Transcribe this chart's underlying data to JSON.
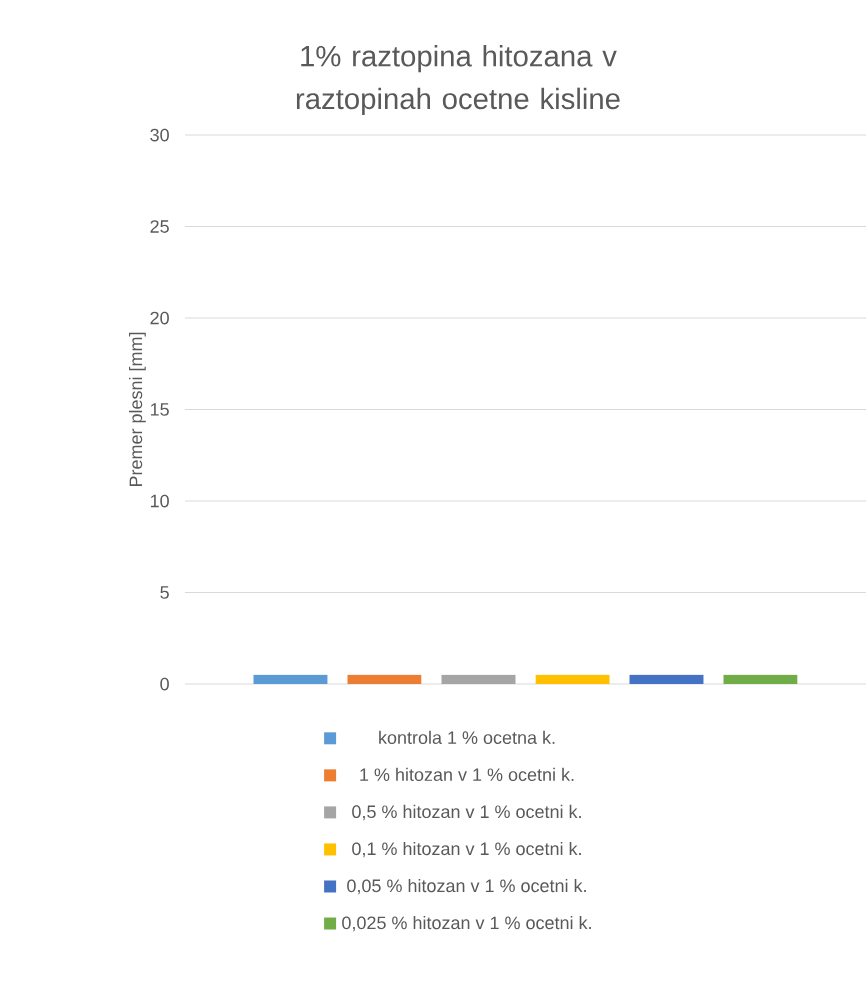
{
  "chart_data": {
    "type": "bar",
    "title": "1% raztopina hitozana v raztopinah ocetne kisline",
    "ylabel": "Premer plesni [mm]",
    "categories": [
      null
    ],
    "series": [
      {
        "name": "kontrola 1 % ocetna k.",
        "color": "#5b9bd5",
        "values": [
          0.5
        ]
      },
      {
        "name": "1 % hitozan v 1 % ocetni k.",
        "color": "#ed7d31",
        "values": [
          0.5
        ]
      },
      {
        "name": "0,5 % hitozan v 1 % ocetni k.",
        "color": "#a5a5a5",
        "values": [
          0.5
        ]
      },
      {
        "name": "0,1 % hitozan v 1 % ocetni k.",
        "color": "#ffc000",
        "values": [
          0.5
        ]
      },
      {
        "name": "0,05 % hitozan v 1 % ocetni k.",
        "color": "#4472c4",
        "values": [
          0.5
        ]
      },
      {
        "name": "0,025 % hitozan v 1 % ocetni k.",
        "color": "#70ad47",
        "values": [
          0.5
        ]
      }
    ],
    "ylim": [
      0,
      30
    ],
    "yticks": [
      0,
      5,
      10,
      15,
      20,
      25,
      30
    ],
    "grid": "y",
    "legend": "bottom"
  }
}
